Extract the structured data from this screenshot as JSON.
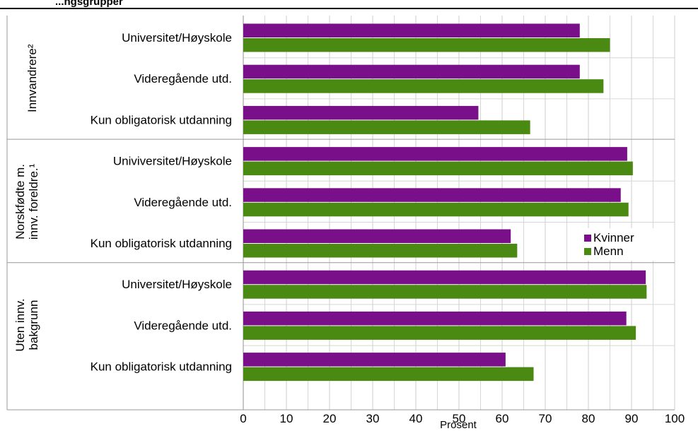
{
  "title": "...ngsgrupper",
  "chart_data": {
    "type": "bar",
    "orientation": "horizontal",
    "groups": [
      {
        "label": "Innvandrere²",
        "categories": [
          "Universitet/Høyskole",
          "Videregående utd.",
          "Kun obligatorisk utdanning"
        ]
      },
      {
        "label_lines": [
          "Norskfødte m.",
          "innv. foreldre.¹"
        ],
        "categories": [
          "Univiversitet/Høyskole",
          "Videregående utd.",
          "Kun obligatorisk utdanning"
        ]
      },
      {
        "label_lines": [
          "Uten innv.",
          "bakgrunn"
        ],
        "categories": [
          "Universitet/Høyskole",
          "Videregående utd.",
          "Kun obligatorisk utdanning"
        ]
      }
    ],
    "series": [
      {
        "name": "Kvinner",
        "color": "#7a0f8a",
        "values": [
          78,
          78,
          54.5,
          89,
          87.5,
          62,
          93.3,
          88.8,
          60.8
        ]
      },
      {
        "name": "Menn",
        "color": "#4a8a12",
        "values": [
          85,
          83.5,
          66.5,
          90.3,
          89.3,
          63.5,
          93.5,
          91,
          67.3
        ]
      }
    ],
    "xlabel": "Prosent",
    "xlim": [
      0,
      100
    ],
    "xticks": [
      0,
      10,
      20,
      30,
      40,
      50,
      60,
      70,
      80,
      90,
      100
    ],
    "grid": true,
    "legend_position": "right"
  }
}
